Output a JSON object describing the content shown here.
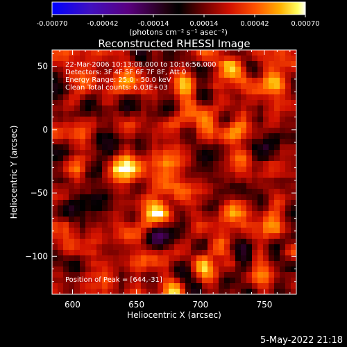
{
  "chart_data": {
    "type": "heatmap",
    "title": "Reconstructed RHESSI Image",
    "xlabel": "Heliocentric X (arcsec)",
    "ylabel": "Heliocentric Y (arcsec)",
    "xlim": [
      584,
      775
    ],
    "ylim": [
      -130,
      63
    ],
    "xticks": [
      600,
      650,
      700,
      750
    ],
    "yticks": [
      50,
      0,
      -50,
      -100
    ],
    "colorbar": {
      "range": [
        -0.0007,
        0.0007
      ],
      "ticks": [
        "-0.00070",
        "-0.00042",
        "-0.00014",
        "0.00014",
        "0.00042",
        "0.00070"
      ],
      "units_label": "(photons cm⁻² s⁻¹ asec⁻²)",
      "colors": [
        "#0000ff",
        "#6000a0",
        "#200020",
        "#000000",
        "#600000",
        "#c00000",
        "#ff4000",
        "#ff9000",
        "#ffff00",
        "#ffffff"
      ]
    },
    "annotations": [
      "22-Mar-2006 10:13:08.000 to 10:16:56.000",
      "Detectors: 3F 4F 5F 6F 7F 8F, Att 0",
      "Energy Range: 25.0 - 50.0 keV",
      "Clean    Total counts: 6.03E+03"
    ],
    "peak_label": "Position of Peak = [644,-31]",
    "peak": [
      644,
      -31
    ],
    "bright_sources": [
      {
        "x": 643,
        "y": -30,
        "level": 0.95
      },
      {
        "x": 668,
        "y": -65,
        "level": 0.85
      },
      {
        "x": 700,
        "y": -105,
        "level": 0.75
      },
      {
        "x": 605,
        "y": -30,
        "level": 0.6
      },
      {
        "x": 763,
        "y": 35,
        "level": 0.6
      },
      {
        "x": 757,
        "y": -65,
        "level": 0.55
      },
      {
        "x": 612,
        "y": 30,
        "level": 0.5
      },
      {
        "x": 645,
        "y": 40,
        "level": 0.45
      },
      {
        "x": 737,
        "y": -20,
        "level": 0.5
      },
      {
        "x": 690,
        "y": 35,
        "level": 0.4
      },
      {
        "x": 600,
        "y": -90,
        "level": 0.45
      },
      {
        "x": 722,
        "y": 50,
        "level": 0.5
      }
    ]
  },
  "footer_date": "5-May-2022 21:18"
}
